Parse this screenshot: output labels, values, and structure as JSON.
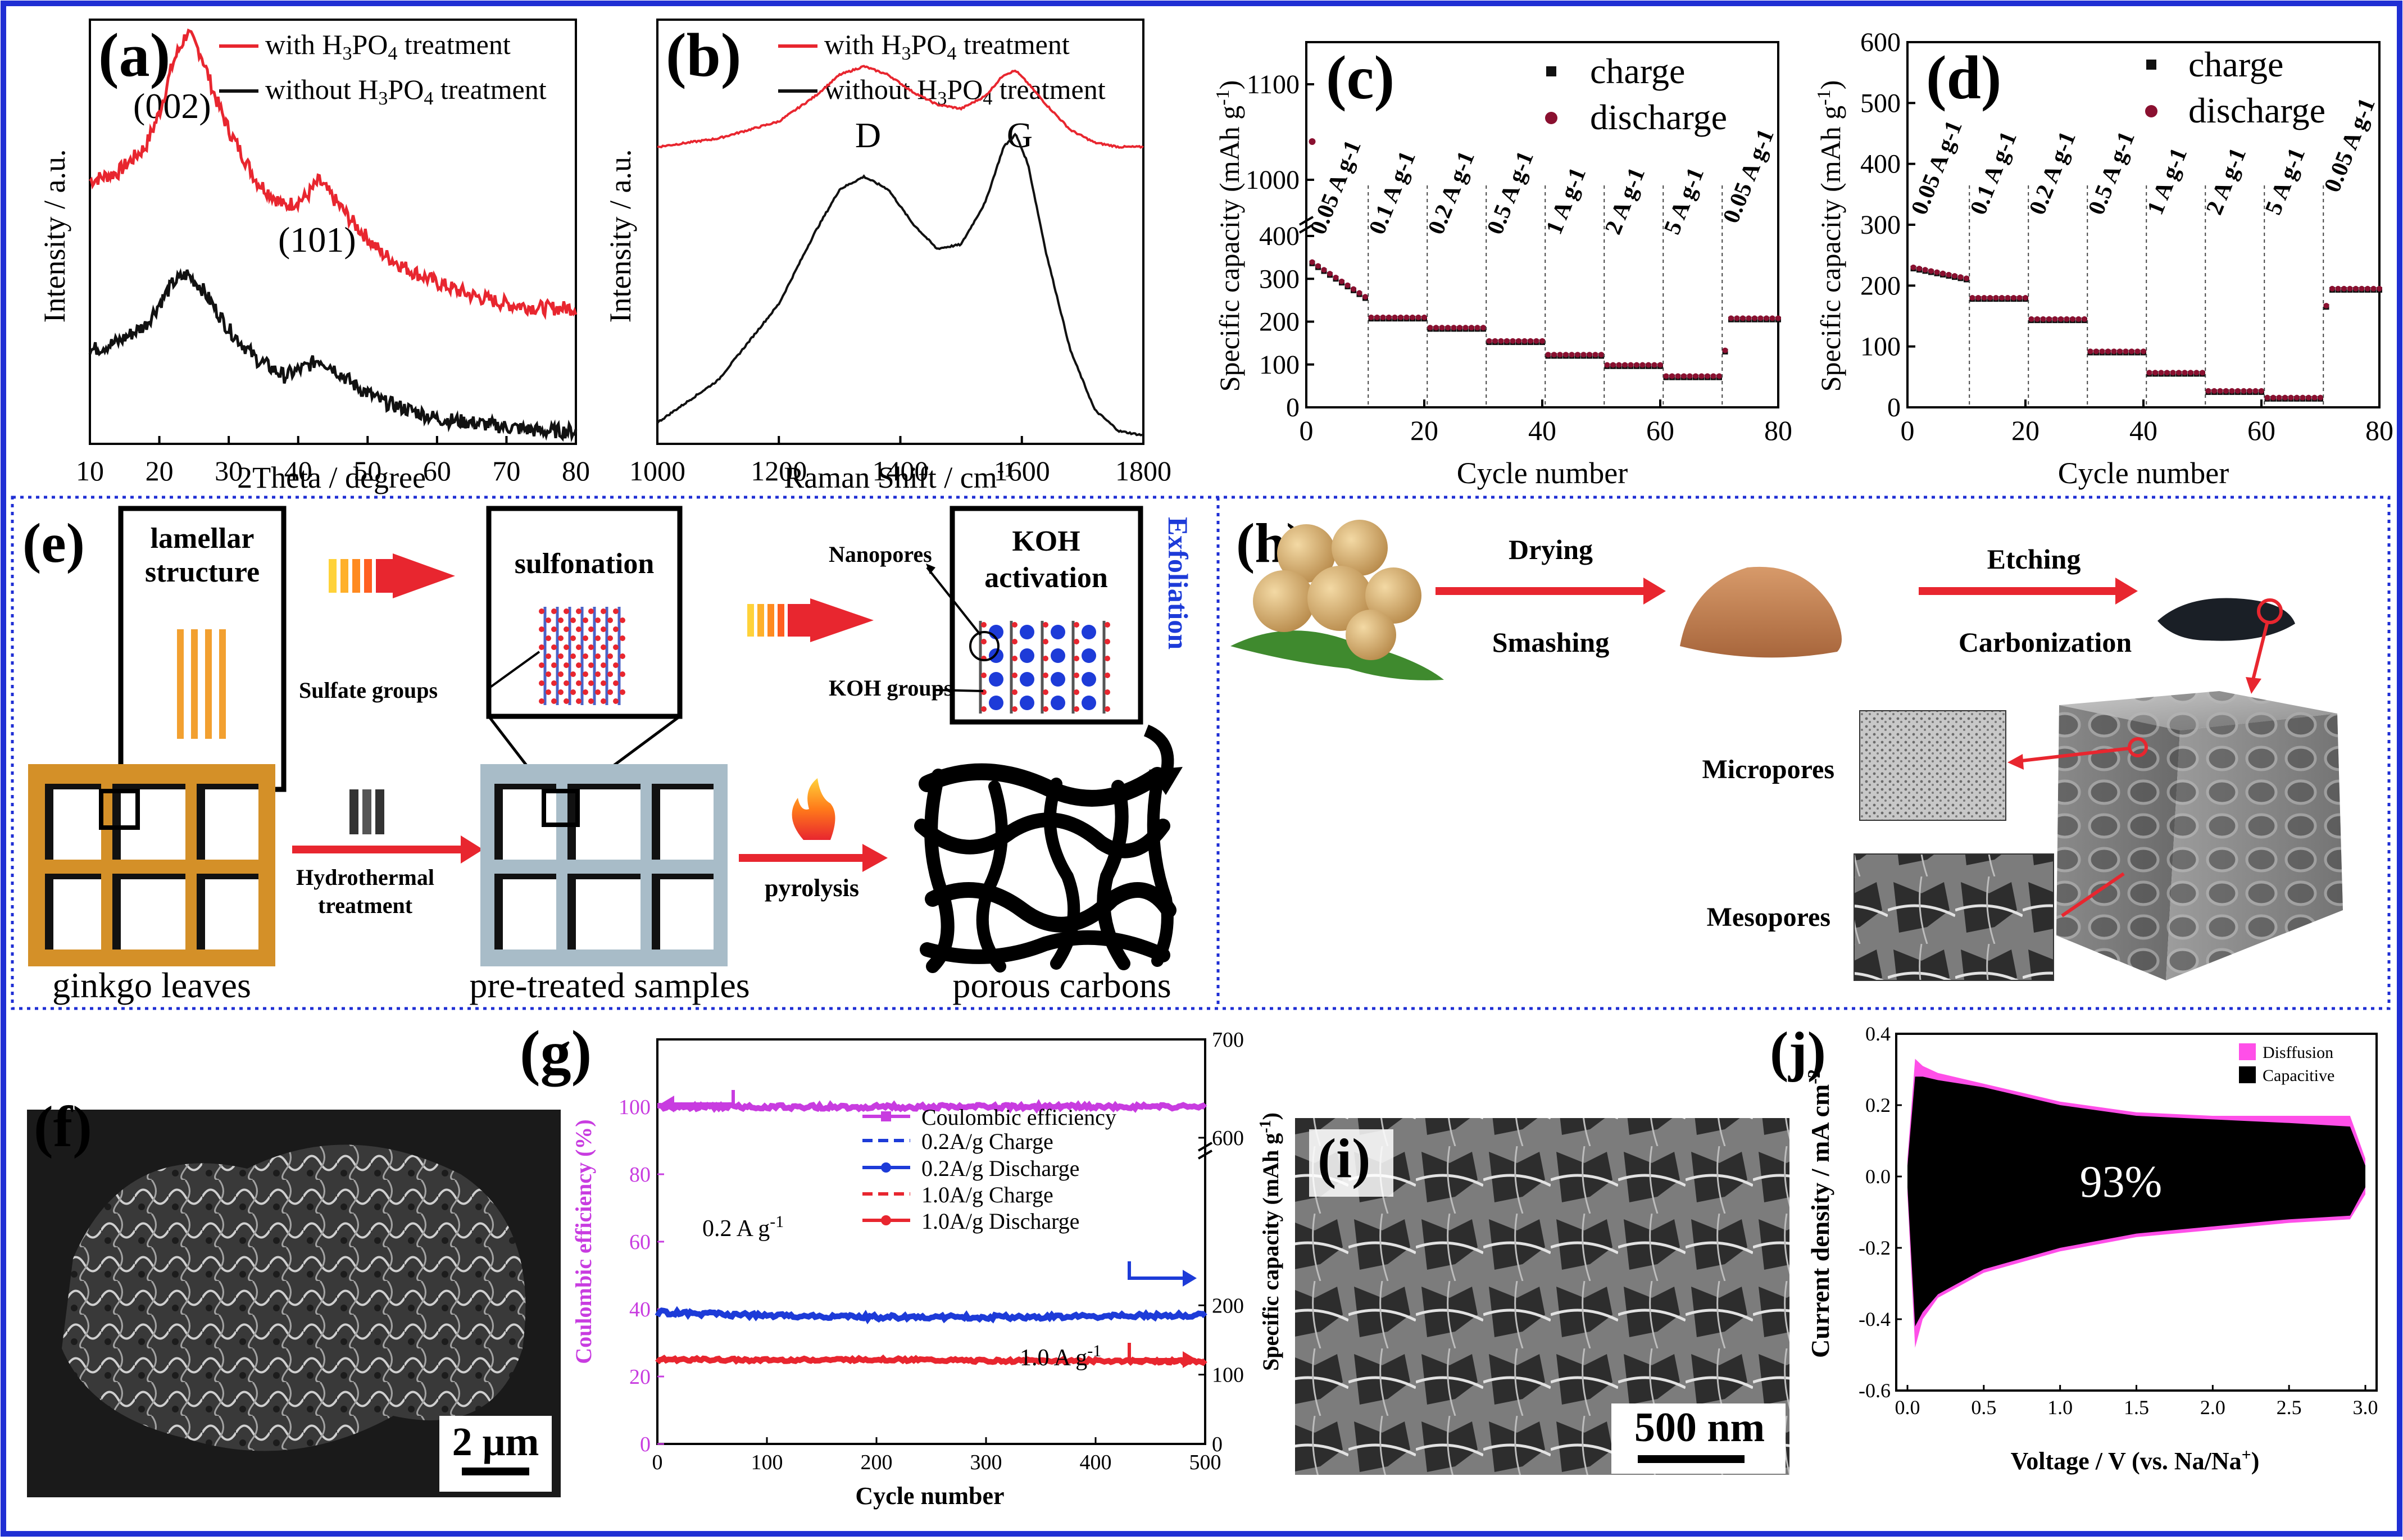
{
  "figure": {
    "colors": {
      "border": "#1f2fd4",
      "red": "#e8262f",
      "black": "#111111",
      "magenta": "#c83ce0",
      "blue": "#1d3bd8",
      "pink": "#ff4fe8",
      "dotcharge": "#111111",
      "dotdis": "#8a1030"
    },
    "panels": {
      "a": {
        "label": "(a)",
        "legend": [
          "with H3PO4 treatment",
          "without H3PO4 treatment"
        ],
        "peaks": [
          "(002)",
          "(101)"
        ],
        "ylabel": "Intensity / a.u.",
        "xlabel": "2Theta / degree"
      },
      "b": {
        "label": "(b)",
        "legend": [
          "with H3PO4 treatment",
          "without H3PO4 treatment"
        ],
        "bands": [
          "D",
          "G"
        ],
        "ylabel": "Intensity / a.u.",
        "xlabel": "Raman Shift / cm-1"
      },
      "c": {
        "label": "(c)",
        "legend": [
          "charge",
          "discharge"
        ],
        "ylabel": "Specific capacity (mAh g-1)",
        "xlabel": "Cycle number",
        "rates": [
          "0.05 A g-1",
          "0.1 A g-1",
          "0.2 A g-1",
          "0.5 A g-1",
          "1 A g-1",
          "2 A g-1",
          "5 A g-1",
          "0.05 A g-1"
        ]
      },
      "d": {
        "label": "(d)",
        "legend": [
          "charge",
          "discharge"
        ],
        "ylabel": "Specific capacity (mAh g-1)",
        "xlabel": "Cycle number",
        "rates": [
          "0.05 A g-1",
          "0.1 A g-1",
          "0.2 A g-1",
          "0.5 A g-1",
          "1 A g-1",
          "2 A g-1",
          "5 A g-1",
          "0.05 A g-1"
        ]
      },
      "e": {
        "label": "(e)",
        "box1": "lamellar\nstructure",
        "box2": "sulfonation",
        "box3": "KOH\nactivation",
        "nanopores": "Nanopores",
        "koh_groups": "KOH groups",
        "sulfate": "Sulfate groups",
        "exfoliation": "Exfoliation",
        "hydrothermal": "Hydrothermal\ntreatment",
        "pyrolysis": "pyrolysis",
        "cap1": "ginkgo leaves",
        "cap2": "pre-treated samples",
        "cap3": "porous carbons"
      },
      "h": {
        "label": "(h)",
        "step1a": "Drying",
        "step1b": "Smashing",
        "step2a": "Etching",
        "step2b": "Carbonization",
        "micro": "Micropores",
        "meso": "Mesopores"
      },
      "f": {
        "label": "(f)",
        "scale": "2 μm"
      },
      "g": {
        "label": "(g)",
        "ylabel_left": "Coulombic efficiency (%)",
        "ylabel_right": "Specific capacity (mAh g-1)",
        "xlabel": "Cycle number",
        "legend": [
          "Coulombic efficiency",
          "0.2A/g Charge",
          "0.2A/g Discharge",
          "1.0A/g Charge",
          "1.0A/g Discharge"
        ],
        "ann1": "0.2 A g-1",
        "ann2": "1.0 A g-1"
      },
      "i": {
        "label": "(i)",
        "scale": "500 nm"
      },
      "j": {
        "label": "(j)",
        "legend": [
          "Disffusion",
          "Capacitive"
        ],
        "percent": "93%",
        "ylabel": "Current density / mA cm-2",
        "xlabel": "Voltage / V (vs. Na/Na+)"
      }
    }
  },
  "chart_data": [
    {
      "id": "a",
      "type": "line",
      "title": "",
      "xlabel": "2Theta / degree",
      "ylabel": "Intensity / a.u.",
      "xlim": [
        10,
        80
      ],
      "xticks": [
        10,
        20,
        30,
        40,
        50,
        60,
        70,
        80
      ],
      "series": [
        {
          "name": "with H3PO4 treatment",
          "x": [
            10,
            14,
            18,
            20,
            22,
            24,
            26,
            28,
            30,
            34,
            38,
            41,
            43,
            45,
            48,
            52,
            56,
            60,
            65,
            70,
            75,
            80
          ],
          "y": [
            0.62,
            0.64,
            0.7,
            0.78,
            0.9,
            0.97,
            0.92,
            0.82,
            0.74,
            0.62,
            0.56,
            0.58,
            0.62,
            0.58,
            0.52,
            0.45,
            0.41,
            0.38,
            0.35,
            0.33,
            0.32,
            0.32
          ]
        },
        {
          "name": "without H3PO4 treatment",
          "x": [
            10,
            14,
            18,
            20,
            22,
            24,
            26,
            28,
            30,
            34,
            38,
            41,
            43,
            45,
            48,
            52,
            56,
            60,
            65,
            70,
            75,
            80
          ],
          "y": [
            0.22,
            0.24,
            0.28,
            0.33,
            0.38,
            0.4,
            0.37,
            0.32,
            0.27,
            0.2,
            0.16,
            0.18,
            0.2,
            0.18,
            0.14,
            0.1,
            0.08,
            0.06,
            0.05,
            0.04,
            0.03,
            0.03
          ]
        }
      ]
    },
    {
      "id": "b",
      "type": "line",
      "title": "",
      "xlabel": "Raman Shift / cm-1",
      "ylabel": "Intensity / a.u.",
      "xlim": [
        1000,
        1800
      ],
      "xticks": [
        1000,
        1200,
        1400,
        1600,
        1800
      ],
      "series": [
        {
          "name": "with H3PO4 treatment",
          "x": [
            1000,
            1100,
            1200,
            1260,
            1300,
            1340,
            1380,
            1420,
            1460,
            1500,
            1540,
            1570,
            1590,
            1610,
            1640,
            1680,
            1720,
            1760,
            1800
          ],
          "y": [
            0.7,
            0.72,
            0.76,
            0.82,
            0.87,
            0.89,
            0.87,
            0.83,
            0.8,
            0.79,
            0.82,
            0.87,
            0.88,
            0.85,
            0.8,
            0.74,
            0.71,
            0.7,
            0.7
          ]
        },
        {
          "name": "without H3PO4 treatment",
          "x": [
            1000,
            1100,
            1200,
            1260,
            1300,
            1340,
            1380,
            1420,
            1460,
            1500,
            1540,
            1570,
            1590,
            1610,
            1640,
            1680,
            1720,
            1760,
            1800
          ],
          "y": [
            0.05,
            0.15,
            0.33,
            0.5,
            0.6,
            0.63,
            0.6,
            0.52,
            0.46,
            0.47,
            0.57,
            0.7,
            0.73,
            0.66,
            0.45,
            0.22,
            0.08,
            0.03,
            0.02
          ]
        }
      ]
    },
    {
      "id": "c",
      "type": "scatter",
      "title": "",
      "xlabel": "Cycle number",
      "ylabel": "Specific capacity (mAh g-1)",
      "xlim": [
        0,
        80
      ],
      "ylim_lower": [
        0,
        400
      ],
      "ylim_upper": [
        1000,
        1100
      ],
      "axis_break": true,
      "segments": [
        {
          "rate": "0.05 A g-1",
          "cycles": [
            1,
            10
          ],
          "value": 255
        },
        {
          "rate": "0.1 A g-1",
          "cycles": [
            11,
            20
          ],
          "value": 207
        },
        {
          "rate": "0.2 A g-1",
          "cycles": [
            21,
            30
          ],
          "value": 183
        },
        {
          "rate": "0.5 A g-1",
          "cycles": [
            31,
            40
          ],
          "value": 152
        },
        {
          "rate": "1 A g-1",
          "cycles": [
            41,
            50
          ],
          "value": 120
        },
        {
          "rate": "2 A g-1",
          "cycles": [
            51,
            60
          ],
          "value": 96
        },
        {
          "rate": "5 A g-1",
          "cycles": [
            61,
            70
          ],
          "value": 70
        },
        {
          "rate": "0.05 A g-1",
          "cycles": [
            71,
            80
          ],
          "value": 205
        }
      ],
      "first_cycle_discharge": 1040
    },
    {
      "id": "d",
      "type": "scatter",
      "title": "",
      "xlabel": "Cycle number",
      "ylabel": "Specific capacity (mAh g-1)",
      "xlim": [
        0,
        80
      ],
      "ylim": [
        0,
        600
      ],
      "segments": [
        {
          "rate": "0.05 A g-1",
          "cycles": [
            1,
            10
          ],
          "value": 210
        },
        {
          "rate": "0.1 A g-1",
          "cycles": [
            11,
            20
          ],
          "value": 178
        },
        {
          "rate": "0.2 A g-1",
          "cycles": [
            21,
            30
          ],
          "value": 143
        },
        {
          "rate": "0.5 A g-1",
          "cycles": [
            31,
            40
          ],
          "value": 90
        },
        {
          "rate": "1 A g-1",
          "cycles": [
            41,
            50
          ],
          "value": 55
        },
        {
          "rate": "2 A g-1",
          "cycles": [
            51,
            60
          ],
          "value": 25
        },
        {
          "rate": "5 A g-1",
          "cycles": [
            61,
            70
          ],
          "value": 14
        },
        {
          "rate": "0.05 A g-1",
          "cycles": [
            71,
            80
          ],
          "value": 193
        }
      ]
    },
    {
      "id": "g",
      "type": "line",
      "title": "",
      "xlabel": "Cycle number",
      "ylabel": "Coulombic efficiency (%)",
      "ylabel_right": "Specific capacity (mAh g-1)",
      "xlim": [
        0,
        500
      ],
      "ylim": [
        0,
        120
      ],
      "ylim_right": [
        0,
        700
      ],
      "series": [
        {
          "name": "Coulombic efficiency",
          "axis": "left",
          "x": [
            1,
            100,
            200,
            300,
            400,
            500
          ],
          "y": [
            100,
            100,
            100,
            100,
            100,
            100
          ]
        },
        {
          "name": "0.2A/g Discharge",
          "axis": "right",
          "x": [
            1,
            100,
            200,
            300,
            400,
            500
          ],
          "y": [
            190,
            185,
            183,
            183,
            184,
            186
          ]
        },
        {
          "name": "1.0A/g Discharge",
          "axis": "right",
          "x": [
            1,
            100,
            200,
            300,
            400,
            500
          ],
          "y": [
            122,
            121,
            122,
            120,
            120,
            119
          ]
        }
      ]
    },
    {
      "id": "j",
      "type": "area",
      "title": "",
      "xlabel": "Voltage / V (vs. Na/Na+)",
      "ylabel": "Current density / mA cm-2",
      "xlim": [
        0,
        3
      ],
      "ylim": [
        -0.6,
        0.4
      ],
      "series": [
        {
          "name": "Disffusion",
          "x": [
            0.0,
            0.05,
            0.1,
            0.2,
            0.5,
            1.0,
            1.5,
            2.0,
            2.5,
            2.9,
            3.0
          ],
          "y_upper": [
            0.05,
            0.33,
            0.31,
            0.29,
            0.26,
            0.21,
            0.18,
            0.17,
            0.17,
            0.17,
            0.05
          ],
          "y_lower": [
            -0.05,
            -0.48,
            -0.4,
            -0.34,
            -0.27,
            -0.21,
            -0.17,
            -0.15,
            -0.13,
            -0.12,
            -0.05
          ]
        },
        {
          "name": "Capacitive",
          "x": [
            0.0,
            0.05,
            0.1,
            0.2,
            0.5,
            1.0,
            1.5,
            2.0,
            2.5,
            2.9,
            3.0
          ],
          "y_upper": [
            0.03,
            0.28,
            0.28,
            0.27,
            0.25,
            0.2,
            0.17,
            0.16,
            0.15,
            0.14,
            0.03
          ],
          "y_lower": [
            -0.03,
            -0.42,
            -0.38,
            -0.33,
            -0.26,
            -0.2,
            -0.16,
            -0.14,
            -0.12,
            -0.11,
            -0.03
          ]
        }
      ]
    }
  ]
}
